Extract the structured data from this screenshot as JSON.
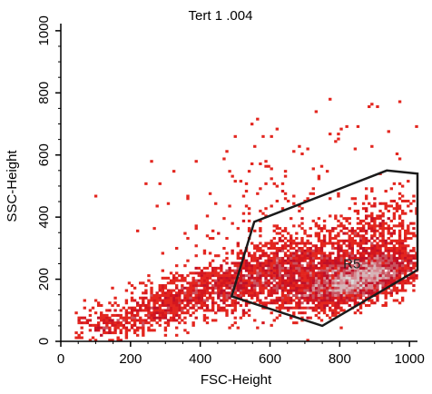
{
  "chart_data": {
    "type": "scatter",
    "title": "Tert 1 .004",
    "xlabel": "FSC-Height",
    "ylabel": "SSC-Height",
    "xlim": [
      0,
      1023
    ],
    "ylim": [
      0,
      1023
    ],
    "x_ticks": [
      0,
      200,
      400,
      600,
      800,
      1000
    ],
    "y_ticks": [
      0,
      200,
      400,
      600,
      800,
      1000
    ],
    "x_tick_labels": [
      "0",
      "200",
      "400",
      "600",
      "800",
      "1000"
    ],
    "y_tick_labels": [
      "0",
      "200",
      "400",
      "600",
      "800",
      "1000"
    ],
    "grid": false,
    "colors": {
      "sparse": "#e0201c",
      "medium": "#c8102e",
      "dense": "#d9d9d9",
      "gate": "#1a1a1a"
    },
    "density_clusters": [
      {
        "x": 850,
        "y": 200,
        "sx": 90,
        "sy": 45,
        "rho": 0.55,
        "n": 2600
      },
      {
        "x": 650,
        "y": 230,
        "sx": 120,
        "sy": 60,
        "rho": 0.5,
        "n": 1400
      },
      {
        "x": 430,
        "y": 170,
        "sx": 110,
        "sy": 45,
        "rho": 0.5,
        "n": 700
      },
      {
        "x": 250,
        "y": 90,
        "sx": 100,
        "sy": 40,
        "rho": 0.5,
        "n": 350
      },
      {
        "x": 900,
        "y": 340,
        "sx": 80,
        "sy": 70,
        "rho": 0.3,
        "n": 500
      },
      {
        "x": 600,
        "y": 450,
        "sx": 200,
        "sy": 150,
        "rho": 0.4,
        "n": 180
      },
      {
        "x": 130,
        "y": 40,
        "sx": 60,
        "sy": 30,
        "rho": 0.3,
        "n": 120
      }
    ],
    "gate": {
      "label": "R5",
      "label_position": {
        "x": 835,
        "y": 235
      },
      "vertices": [
        {
          "x": 490,
          "y": 145
        },
        {
          "x": 555,
          "y": 385
        },
        {
          "x": 935,
          "y": 550
        },
        {
          "x": 1023,
          "y": 540
        },
        {
          "x": 1023,
          "y": 230
        },
        {
          "x": 750,
          "y": 50
        }
      ]
    }
  }
}
